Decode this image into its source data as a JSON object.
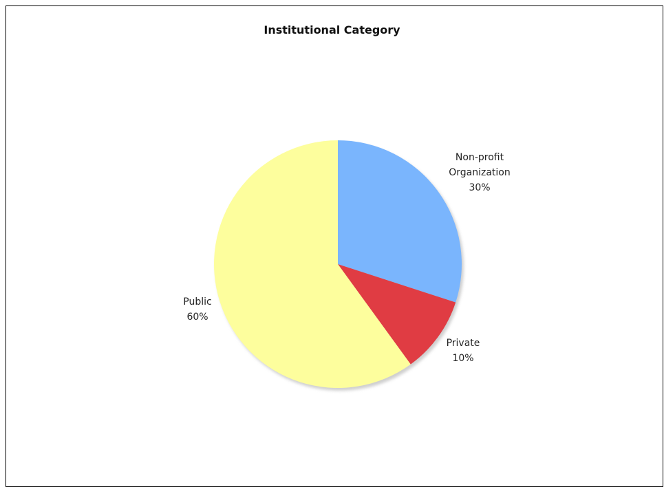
{
  "chart_data": {
    "type": "pie",
    "title": "Institutional Category",
    "slices": [
      {
        "label": "Non-profit Organization",
        "value": 30,
        "display": "30%",
        "color": "#7ab5fd"
      },
      {
        "label": "Private",
        "value": 10,
        "display": "10%",
        "color": "#e03c43"
      },
      {
        "label": "Public",
        "value": 60,
        "display": "60%",
        "color": "#fdfe9d"
      }
    ],
    "start": "top",
    "direction": "clockwise",
    "legend": "none"
  }
}
